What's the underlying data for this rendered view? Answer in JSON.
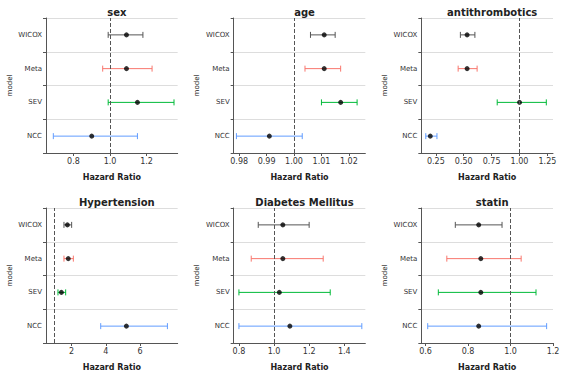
{
  "chart_data": [
    {
      "type": "forest",
      "title": "sex",
      "x_label": "Hazard Ratio",
      "y_label": "model",
      "categories": [
        "NCC",
        "SEV",
        "Meta",
        "WICOX"
      ],
      "values": [
        0.9,
        1.15,
        1.09,
        1.09
      ],
      "lower": [
        0.69,
        0.99,
        0.96,
        0.99
      ],
      "upper": [
        1.15,
        1.35,
        1.23,
        1.18
      ],
      "color": "#000000",
      "colors": [
        "#619CFF",
        "#00BA38",
        "#F8766D",
        "#555555"
      ],
      "reference_line": 1,
      "xlim": [
        0.65,
        1.37
      ],
      "xticks": [
        0.8,
        {
          "value": 1,
          "label": "1.0"
        },
        1.2
      ]
    },
    {
      "type": "forest",
      "title": "age",
      "x_label": "Hazard Ratio",
      "y_label": "model",
      "categories": [
        "NCC",
        "SEV",
        "Meta",
        "WICOX"
      ],
      "values": [
        0.991,
        1.017,
        1.011,
        1.011
      ],
      "lower": [
        0.979,
        1.01,
        1.004,
        1.006
      ],
      "upper": [
        1.003,
        1.023,
        1.017,
        1.015
      ],
      "color": "#000000",
      "colors": [
        "#619CFF",
        "#00BA38",
        "#F8766D",
        "#555555"
      ],
      "reference_line": 1,
      "xlim": [
        0.978,
        1.026
      ],
      "xticks": [
        0.98,
        0.99,
        {
          "value": 1,
          "label": "1.00"
        },
        1.01,
        1.02
      ]
    },
    {
      "type": "forest",
      "title": "antithrombotics",
      "x_label": "Hazard Ratio",
      "y_label": "model",
      "categories": [
        "NCC",
        "SEV",
        "Meta",
        "WICOX"
      ],
      "values": [
        0.2,
        1.0,
        0.53,
        0.53
      ],
      "lower": [
        0.16,
        0.8,
        0.45,
        0.47
      ],
      "upper": [
        0.26,
        1.24,
        0.62,
        0.6
      ],
      "color": "#000000",
      "colors": [
        "#619CFF",
        "#00BA38",
        "#F8766D",
        "#555555"
      ],
      "reference_line": 1,
      "xlim": [
        0.12,
        1.3
      ],
      "xticks": [
        0.25,
        {
          "value": 0.5,
          "label": "0.50"
        },
        0.75,
        {
          "value": 1,
          "label": "1.00"
        },
        1.25
      ]
    },
    {
      "type": "forest",
      "title": "Hypertension",
      "x_label": "Hazard Ratio",
      "y_label": "model",
      "categories": [
        "NCC",
        "SEV",
        "Meta",
        "WICOX"
      ],
      "values": [
        5.2,
        1.4,
        1.8,
        1.75
      ],
      "lower": [
        3.7,
        1.2,
        1.55,
        1.55
      ],
      "upper": [
        7.6,
        1.65,
        2.1,
        2.0
      ],
      "color": "#000000",
      "colors": [
        "#619CFF",
        "#00BA38",
        "#F8766D",
        "#555555"
      ],
      "reference_line": 1,
      "xlim": [
        0.5,
        8.2
      ],
      "xticks": [
        2,
        4,
        6
      ]
    },
    {
      "type": "forest",
      "title": "Diabetes Mellitus",
      "x_label": "Hazard Ratio",
      "y_label": "model",
      "categories": [
        "NCC",
        "SEV",
        "Meta",
        "WICOX"
      ],
      "values": [
        1.09,
        1.03,
        1.05,
        1.05
      ],
      "lower": [
        0.8,
        0.8,
        0.87,
        0.91
      ],
      "upper": [
        1.5,
        1.32,
        1.28,
        1.2
      ],
      "color": "#000000",
      "colors": [
        "#619CFF",
        "#00BA38",
        "#F8766D",
        "#555555"
      ],
      "reference_line": 1,
      "xlim": [
        0.77,
        1.52
      ],
      "xticks": [
        0.8,
        {
          "value": 1,
          "label": "1.0"
        },
        1.2,
        1.4
      ]
    },
    {
      "type": "forest",
      "title": "statin",
      "x_label": "Hazard Ratio",
      "y_label": "model",
      "categories": [
        "NCC",
        "SEV",
        "Meta",
        "WICOX"
      ],
      "values": [
        0.85,
        0.86,
        0.86,
        0.85
      ],
      "lower": [
        0.61,
        0.66,
        0.7,
        0.74
      ],
      "upper": [
        1.17,
        1.12,
        1.05,
        0.96
      ],
      "color": "#000000",
      "colors": [
        "#619CFF",
        "#00BA38",
        "#F8766D",
        "#555555"
      ],
      "reference_line": 1,
      "xlim": [
        0.58,
        1.2
      ],
      "xticks": [
        0.6,
        0.8,
        {
          "value": 1,
          "label": "1.0"
        },
        1.2
      ]
    }
  ]
}
